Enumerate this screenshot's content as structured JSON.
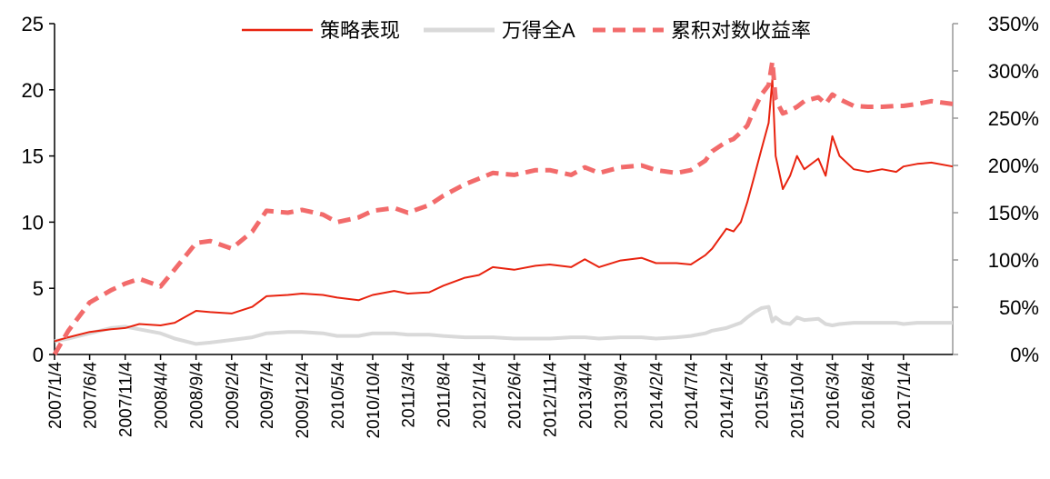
{
  "chart_data": {
    "type": "line",
    "title": "",
    "xlabel": "",
    "ylabel": "",
    "x_ticks": [
      "2007/1/4",
      "2007/6/4",
      "2007/11/4",
      "2008/4/4",
      "2008/9/4",
      "2009/2/4",
      "2009/7/4",
      "2009/12/4",
      "2010/5/4",
      "2010/10/4",
      "2011/3/4",
      "2011/8/4",
      "2012/1/4",
      "2012/6/4",
      "2012/11/4",
      "2013/4/4",
      "2013/9/4",
      "2014/2/4",
      "2014/7/4",
      "2014/12/4",
      "2015/5/4",
      "2015/10/4",
      "2016/3/4",
      "2016/8/4",
      "2017/1/4"
    ],
    "left_axis": {
      "ylim": [
        0,
        25
      ],
      "ticks": [
        "0",
        "5",
        "10",
        "15",
        "20",
        "25"
      ]
    },
    "right_axis": {
      "ylim": [
        0,
        350
      ],
      "ticks": [
        "0%",
        "50%",
        "100%",
        "150%",
        "200%",
        "250%",
        "300%",
        "350%"
      ]
    },
    "legend_position": "top-center",
    "grid": false,
    "x_end": "2017/8/4",
    "series": [
      {
        "name": "策略表现",
        "axis": "left",
        "color": "#e8230f",
        "style": "solid",
        "x": [
          "2007/1/4",
          "2007/3/4",
          "2007/6/4",
          "2007/9/4",
          "2007/11/4",
          "2008/1/4",
          "2008/4/4",
          "2008/6/4",
          "2008/9/4",
          "2008/11/4",
          "2009/2/4",
          "2009/5/4",
          "2009/7/4",
          "2009/10/4",
          "2009/12/4",
          "2010/3/4",
          "2010/5/4",
          "2010/8/4",
          "2010/10/4",
          "2011/1/4",
          "2011/3/4",
          "2011/6/4",
          "2011/8/4",
          "2011/11/4",
          "2012/1/4",
          "2012/3/4",
          "2012/6/4",
          "2012/9/4",
          "2012/11/4",
          "2013/2/4",
          "2013/4/4",
          "2013/6/4",
          "2013/9/4",
          "2013/12/4",
          "2014/2/4",
          "2014/5/4",
          "2014/7/4",
          "2014/9/4",
          "2014/10/4",
          "2014/12/4",
          "2015/1/4",
          "2015/2/4",
          "2015/3/4",
          "2015/4/4",
          "2015/5/4",
          "2015/6/4",
          "2015/6/20",
          "2015/7/4",
          "2015/8/4",
          "2015/9/4",
          "2015/10/4",
          "2015/11/4",
          "2016/1/4",
          "2016/2/4",
          "2016/3/4",
          "2016/4/4",
          "2016/6/4",
          "2016/8/4",
          "2016/10/4",
          "2016/12/4",
          "2017/1/4",
          "2017/3/4",
          "2017/5/4",
          "2017/8/4"
        ],
        "values": [
          1.0,
          1.3,
          1.7,
          1.9,
          2.0,
          2.3,
          2.2,
          2.4,
          3.3,
          3.2,
          3.1,
          3.6,
          4.4,
          4.5,
          4.6,
          4.5,
          4.3,
          4.1,
          4.5,
          4.8,
          4.6,
          4.7,
          5.2,
          5.8,
          6.0,
          6.6,
          6.4,
          6.7,
          6.8,
          6.6,
          7.2,
          6.6,
          7.1,
          7.3,
          6.9,
          6.9,
          6.8,
          7.5,
          8.0,
          9.5,
          9.3,
          10.0,
          11.5,
          13.5,
          15.5,
          17.5,
          20.8,
          15.0,
          12.5,
          13.5,
          15.0,
          14.0,
          14.8,
          13.5,
          16.5,
          15.0,
          14.0,
          13.8,
          14.0,
          13.8,
          14.2,
          14.4,
          14.5,
          14.2
        ]
      },
      {
        "name": "万得全A",
        "axis": "left",
        "color": "#d9d9d9",
        "style": "solid",
        "x": [
          "2007/1/4",
          "2007/3/4",
          "2007/6/4",
          "2007/9/4",
          "2007/11/4",
          "2008/1/4",
          "2008/4/4",
          "2008/6/4",
          "2008/9/4",
          "2008/11/4",
          "2009/2/4",
          "2009/5/4",
          "2009/7/4",
          "2009/10/4",
          "2009/12/4",
          "2010/3/4",
          "2010/5/4",
          "2010/8/4",
          "2010/10/4",
          "2011/1/4",
          "2011/3/4",
          "2011/6/4",
          "2011/8/4",
          "2011/11/4",
          "2012/1/4",
          "2012/3/4",
          "2012/6/4",
          "2012/9/4",
          "2012/11/4",
          "2013/2/4",
          "2013/4/4",
          "2013/6/4",
          "2013/9/4",
          "2013/12/4",
          "2014/2/4",
          "2014/5/4",
          "2014/7/4",
          "2014/9/4",
          "2014/10/4",
          "2014/12/4",
          "2015/1/4",
          "2015/2/4",
          "2015/3/4",
          "2015/4/4",
          "2015/5/4",
          "2015/6/4",
          "2015/6/20",
          "2015/7/4",
          "2015/8/4",
          "2015/9/4",
          "2015/10/4",
          "2015/11/4",
          "2016/1/4",
          "2016/2/4",
          "2016/3/4",
          "2016/4/4",
          "2016/6/4",
          "2016/8/4",
          "2016/10/4",
          "2016/12/4",
          "2017/1/4",
          "2017/3/4",
          "2017/5/4",
          "2017/8/4"
        ],
        "values": [
          1.0,
          1.2,
          1.6,
          2.0,
          2.1,
          1.9,
          1.6,
          1.2,
          0.8,
          0.9,
          1.1,
          1.3,
          1.6,
          1.7,
          1.7,
          1.6,
          1.4,
          1.4,
          1.6,
          1.6,
          1.5,
          1.5,
          1.4,
          1.3,
          1.3,
          1.3,
          1.2,
          1.2,
          1.2,
          1.3,
          1.3,
          1.2,
          1.3,
          1.3,
          1.2,
          1.3,
          1.4,
          1.6,
          1.8,
          2.0,
          2.2,
          2.4,
          2.8,
          3.2,
          3.5,
          3.6,
          2.5,
          2.8,
          2.4,
          2.3,
          2.8,
          2.6,
          2.7,
          2.3,
          2.2,
          2.3,
          2.4,
          2.4,
          2.4,
          2.4,
          2.3,
          2.4,
          2.4,
          2.4
        ]
      },
      {
        "name": "累积对数收益率",
        "axis": "right",
        "color": "#f26b6b",
        "style": "dashed",
        "x": [
          "2007/1/4",
          "2007/3/4",
          "2007/6/4",
          "2007/9/4",
          "2007/11/4",
          "2008/1/4",
          "2008/4/4",
          "2008/6/4",
          "2008/9/4",
          "2008/11/4",
          "2009/2/4",
          "2009/5/4",
          "2009/7/4",
          "2009/10/4",
          "2009/12/4",
          "2010/3/4",
          "2010/5/4",
          "2010/8/4",
          "2010/10/4",
          "2011/1/4",
          "2011/3/4",
          "2011/6/4",
          "2011/8/4",
          "2011/11/4",
          "2012/1/4",
          "2012/3/4",
          "2012/6/4",
          "2012/9/4",
          "2012/11/4",
          "2013/2/4",
          "2013/4/4",
          "2013/6/4",
          "2013/9/4",
          "2013/12/4",
          "2014/2/4",
          "2014/5/4",
          "2014/7/4",
          "2014/9/4",
          "2014/10/4",
          "2014/12/4",
          "2015/1/4",
          "2015/2/4",
          "2015/3/4",
          "2015/4/4",
          "2015/5/4",
          "2015/6/4",
          "2015/6/20",
          "2015/7/4",
          "2015/8/4",
          "2015/9/4",
          "2015/10/4",
          "2015/11/4",
          "2016/1/4",
          "2016/2/4",
          "2016/3/4",
          "2016/4/4",
          "2016/6/4",
          "2016/8/4",
          "2016/10/4",
          "2016/12/4",
          "2017/1/4",
          "2017/3/4",
          "2017/5/4",
          "2017/8/4"
        ],
        "values": [
          0,
          25,
          55,
          68,
          75,
          80,
          72,
          90,
          118,
          120,
          112,
          130,
          152,
          150,
          153,
          148,
          140,
          145,
          152,
          155,
          150,
          158,
          168,
          180,
          186,
          192,
          190,
          195,
          195,
          190,
          198,
          192,
          198,
          200,
          195,
          192,
          195,
          205,
          215,
          225,
          228,
          235,
          242,
          260,
          275,
          285,
          310,
          270,
          255,
          258,
          262,
          268,
          272,
          265,
          275,
          270,
          263,
          262,
          262,
          263,
          263,
          265,
          268,
          265
        ]
      }
    ]
  }
}
